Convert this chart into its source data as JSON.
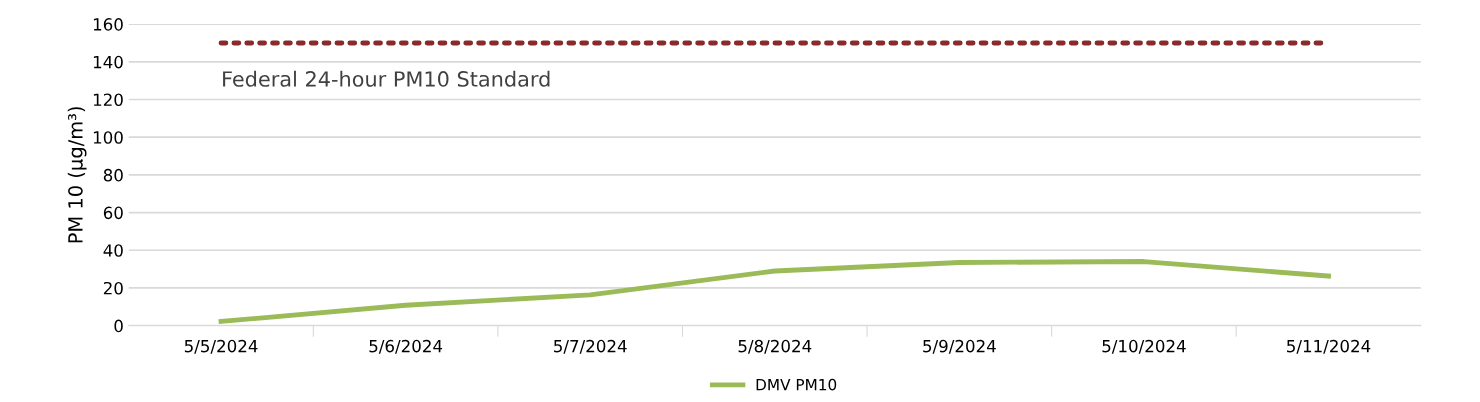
{
  "chart_data": {
    "type": "line",
    "ylabel": "PM 10 (µg/m³)",
    "categories": [
      "5/5/2024",
      "5/6/2024",
      "5/7/2024",
      "5/8/2024",
      "5/9/2024",
      "5/10/2024",
      "5/11/2024"
    ],
    "series": [
      {
        "name": "DMV PM10",
        "color": "#9bbb59",
        "values": [
          2.2,
          10.8,
          16.3,
          29,
          33.5,
          34,
          26.3
        ]
      }
    ],
    "ref_lines": [
      {
        "axis": "y",
        "value": 150,
        "label": "Federal 24-hour PM10 Standard",
        "color": "#8b2a2a",
        "line_style": "dotted"
      }
    ],
    "ylim": [
      0,
      160
    ],
    "yticks": [
      0,
      20,
      40,
      60,
      80,
      100,
      120,
      140,
      160
    ],
    "grid": "y",
    "legend": "bottom",
    "marker": "none",
    "line_style": "solid"
  }
}
